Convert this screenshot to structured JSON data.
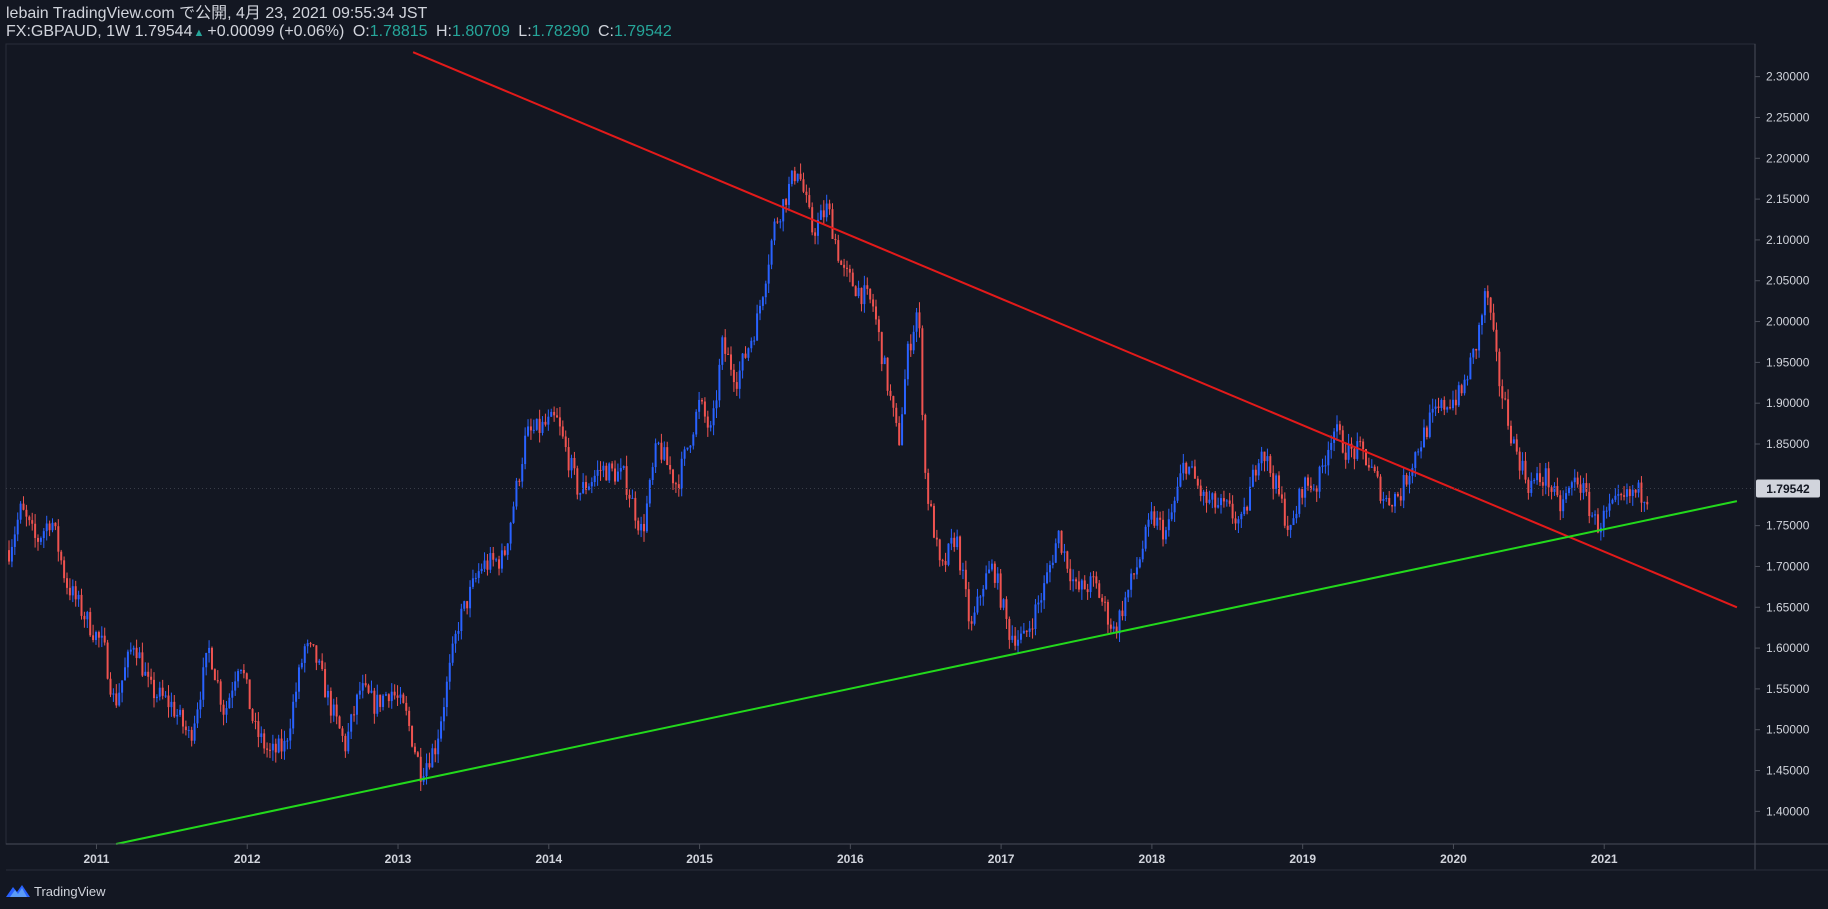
{
  "header": {
    "publisher_line": "lebain TradingView.com で公開, 4月 23, 2021 09:55:34 JST",
    "symbol": "FX:GBPAUD, 1W",
    "last": "1.79544",
    "change": "+0.00099 (+0.06%)",
    "open_label": "O:",
    "open": "1.78815",
    "high_label": "H:",
    "high": "1.80709",
    "low_label": "L:",
    "low": "1.78290",
    "close_label": "C:",
    "close": "1.79542",
    "up_arrow": "▲"
  },
  "footer": {
    "brand": "TradingView",
    "logo_icon": "tradingview-logo-icon"
  },
  "colors": {
    "background": "#131722",
    "up_candle": "#2962ff",
    "down_candle": "#ef5350",
    "resistance_line": "#e31a1a",
    "support_line": "#23d91c",
    "axis_text": "#d1d4dc",
    "price_label_bg": "#d1d4dc"
  },
  "chart_data": {
    "type": "candlestick",
    "timeframe": "1W",
    "ylim": [
      1.36,
      2.34
    ],
    "xlim": [
      2010.4,
      2022.0
    ],
    "y_ticks": [
      "1.40000",
      "1.45000",
      "1.50000",
      "1.55000",
      "1.60000",
      "1.65000",
      "1.70000",
      "1.75000",
      "1.80000",
      "1.85000",
      "1.90000",
      "1.95000",
      "2.00000",
      "2.05000",
      "2.10000",
      "2.15000",
      "2.20000",
      "2.25000",
      "2.30000"
    ],
    "x_ticks": [
      "2011",
      "2012",
      "2013",
      "2014",
      "2015",
      "2016",
      "2017",
      "2018",
      "2019",
      "2020",
      "2021"
    ],
    "last_price_label": "1.79542",
    "last_price": 1.79542,
    "price_anchors": [
      [
        2010.42,
        1.72
      ],
      [
        2010.5,
        1.77
      ],
      [
        2010.6,
        1.73
      ],
      [
        2010.7,
        1.76
      ],
      [
        2010.8,
        1.68
      ],
      [
        2010.95,
        1.63
      ],
      [
        2011.05,
        1.6
      ],
      [
        2011.12,
        1.53
      ],
      [
        2011.25,
        1.61
      ],
      [
        2011.35,
        1.55
      ],
      [
        2011.5,
        1.53
      ],
      [
        2011.62,
        1.49
      ],
      [
        2011.75,
        1.6
      ],
      [
        2011.85,
        1.52
      ],
      [
        2011.95,
        1.59
      ],
      [
        2012.05,
        1.5
      ],
      [
        2012.15,
        1.47
      ],
      [
        2012.25,
        1.48
      ],
      [
        2012.38,
        1.6
      ],
      [
        2012.45,
        1.59
      ],
      [
        2012.55,
        1.53
      ],
      [
        2012.65,
        1.48
      ],
      [
        2012.75,
        1.55
      ],
      [
        2012.85,
        1.53
      ],
      [
        2012.95,
        1.55
      ],
      [
        2013.05,
        1.52
      ],
      [
        2013.15,
        1.45
      ],
      [
        2013.25,
        1.48
      ],
      [
        2013.4,
        1.63
      ],
      [
        2013.55,
        1.7
      ],
      [
        2013.7,
        1.71
      ],
      [
        2013.85,
        1.86
      ],
      [
        2014.05,
        1.88
      ],
      [
        2014.2,
        1.79
      ],
      [
        2014.35,
        1.82
      ],
      [
        2014.5,
        1.81
      ],
      [
        2014.62,
        1.74
      ],
      [
        2014.72,
        1.85
      ],
      [
        2014.85,
        1.8
      ],
      [
        2015.0,
        1.9
      ],
      [
        2015.08,
        1.86
      ],
      [
        2015.15,
        1.97
      ],
      [
        2015.25,
        1.93
      ],
      [
        2015.38,
        2.0
      ],
      [
        2015.5,
        2.12
      ],
      [
        2015.65,
        2.19
      ],
      [
        2015.75,
        2.11
      ],
      [
        2015.85,
        2.14
      ],
      [
        2015.95,
        2.06
      ],
      [
        2016.05,
        2.04
      ],
      [
        2016.15,
        2.02
      ],
      [
        2016.25,
        1.92
      ],
      [
        2016.32,
        1.85
      ],
      [
        2016.38,
        1.96
      ],
      [
        2016.45,
        2.02
      ],
      [
        2016.5,
        1.8
      ],
      [
        2016.55,
        1.75
      ],
      [
        2016.6,
        1.69
      ],
      [
        2016.7,
        1.74
      ],
      [
        2016.8,
        1.62
      ],
      [
        2016.88,
        1.68
      ],
      [
        2016.95,
        1.7
      ],
      [
        2017.05,
        1.62
      ],
      [
        2017.15,
        1.61
      ],
      [
        2017.28,
        1.67
      ],
      [
        2017.38,
        1.74
      ],
      [
        2017.5,
        1.67
      ],
      [
        2017.62,
        1.68
      ],
      [
        2017.75,
        1.62
      ],
      [
        2017.9,
        1.7
      ],
      [
        2018.0,
        1.76
      ],
      [
        2018.1,
        1.74
      ],
      [
        2018.22,
        1.83
      ],
      [
        2018.35,
        1.78
      ],
      [
        2018.5,
        1.77
      ],
      [
        2018.6,
        1.75
      ],
      [
        2018.72,
        1.85
      ],
      [
        2018.82,
        1.8
      ],
      [
        2018.92,
        1.74
      ],
      [
        2019.0,
        1.8
      ],
      [
        2019.1,
        1.8
      ],
      [
        2019.2,
        1.87
      ],
      [
        2019.3,
        1.84
      ],
      [
        2019.4,
        1.84
      ],
      [
        2019.55,
        1.78
      ],
      [
        2019.65,
        1.79
      ],
      [
        2019.75,
        1.84
      ],
      [
        2019.85,
        1.88
      ],
      [
        2019.95,
        1.9
      ],
      [
        2020.05,
        1.91
      ],
      [
        2020.15,
        1.97
      ],
      [
        2020.22,
        2.04
      ],
      [
        2020.3,
        1.93
      ],
      [
        2020.4,
        1.85
      ],
      [
        2020.5,
        1.8
      ],
      [
        2020.62,
        1.81
      ],
      [
        2020.7,
        1.77
      ],
      [
        2020.82,
        1.81
      ],
      [
        2020.95,
        1.75
      ],
      [
        2021.05,
        1.77
      ],
      [
        2021.2,
        1.79
      ],
      [
        2021.3,
        1.79
      ]
    ],
    "trendlines": [
      {
        "name": "resistance",
        "points": [
          [
            2013.1,
            2.33
          ],
          [
            2021.88,
            1.65
          ]
        ]
      },
      {
        "name": "support",
        "points": [
          [
            2011.13,
            1.36
          ],
          [
            2021.88,
            1.78
          ]
        ]
      }
    ],
    "grid": false
  }
}
